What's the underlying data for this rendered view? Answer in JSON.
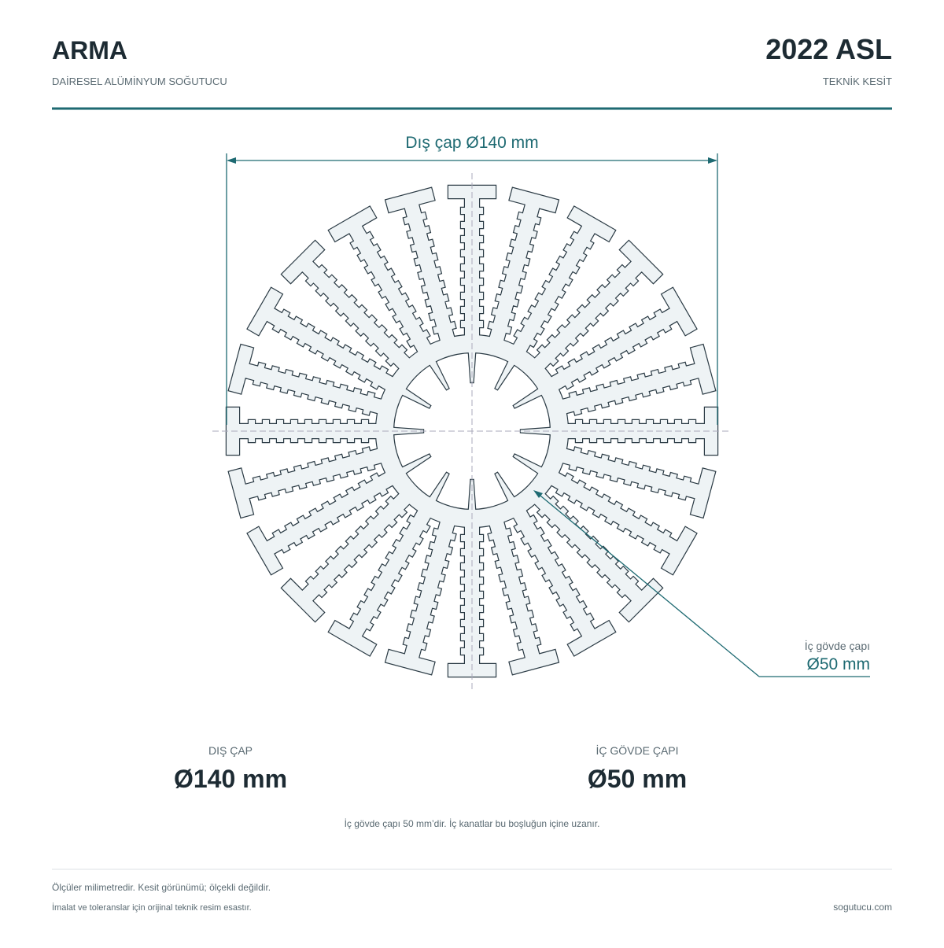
{
  "header": {
    "title": "ARMA",
    "subtitle": "DAİRESEL ALÜMİNYUM SOĞUTUCU",
    "model": "2022 ASL",
    "view": "TEKNİK KESİT"
  },
  "drawing": {
    "outer_dimension": "Dış çap Ø140 mm",
    "callout_label": "İç gövde çapı",
    "callout_value": "Ø50 mm"
  },
  "specs": [
    {
      "label": "DIŞ ÇAP",
      "value": "Ø140 mm"
    },
    {
      "label": "İÇ GÖVDE ÇAPI",
      "value": "Ø50 mm"
    }
  ],
  "note": "İç gövde çapı 50 mm’dir. İç kanatlar bu boşluğun içine uzanır.",
  "footer": {
    "line1": "Ölçüler milimetredir. Kesit görünümü; ölçekli değildir.",
    "line2": "İmalat ve toleranslar için orijinal teknik resim esastır.",
    "site": "sogutucu.com"
  }
}
